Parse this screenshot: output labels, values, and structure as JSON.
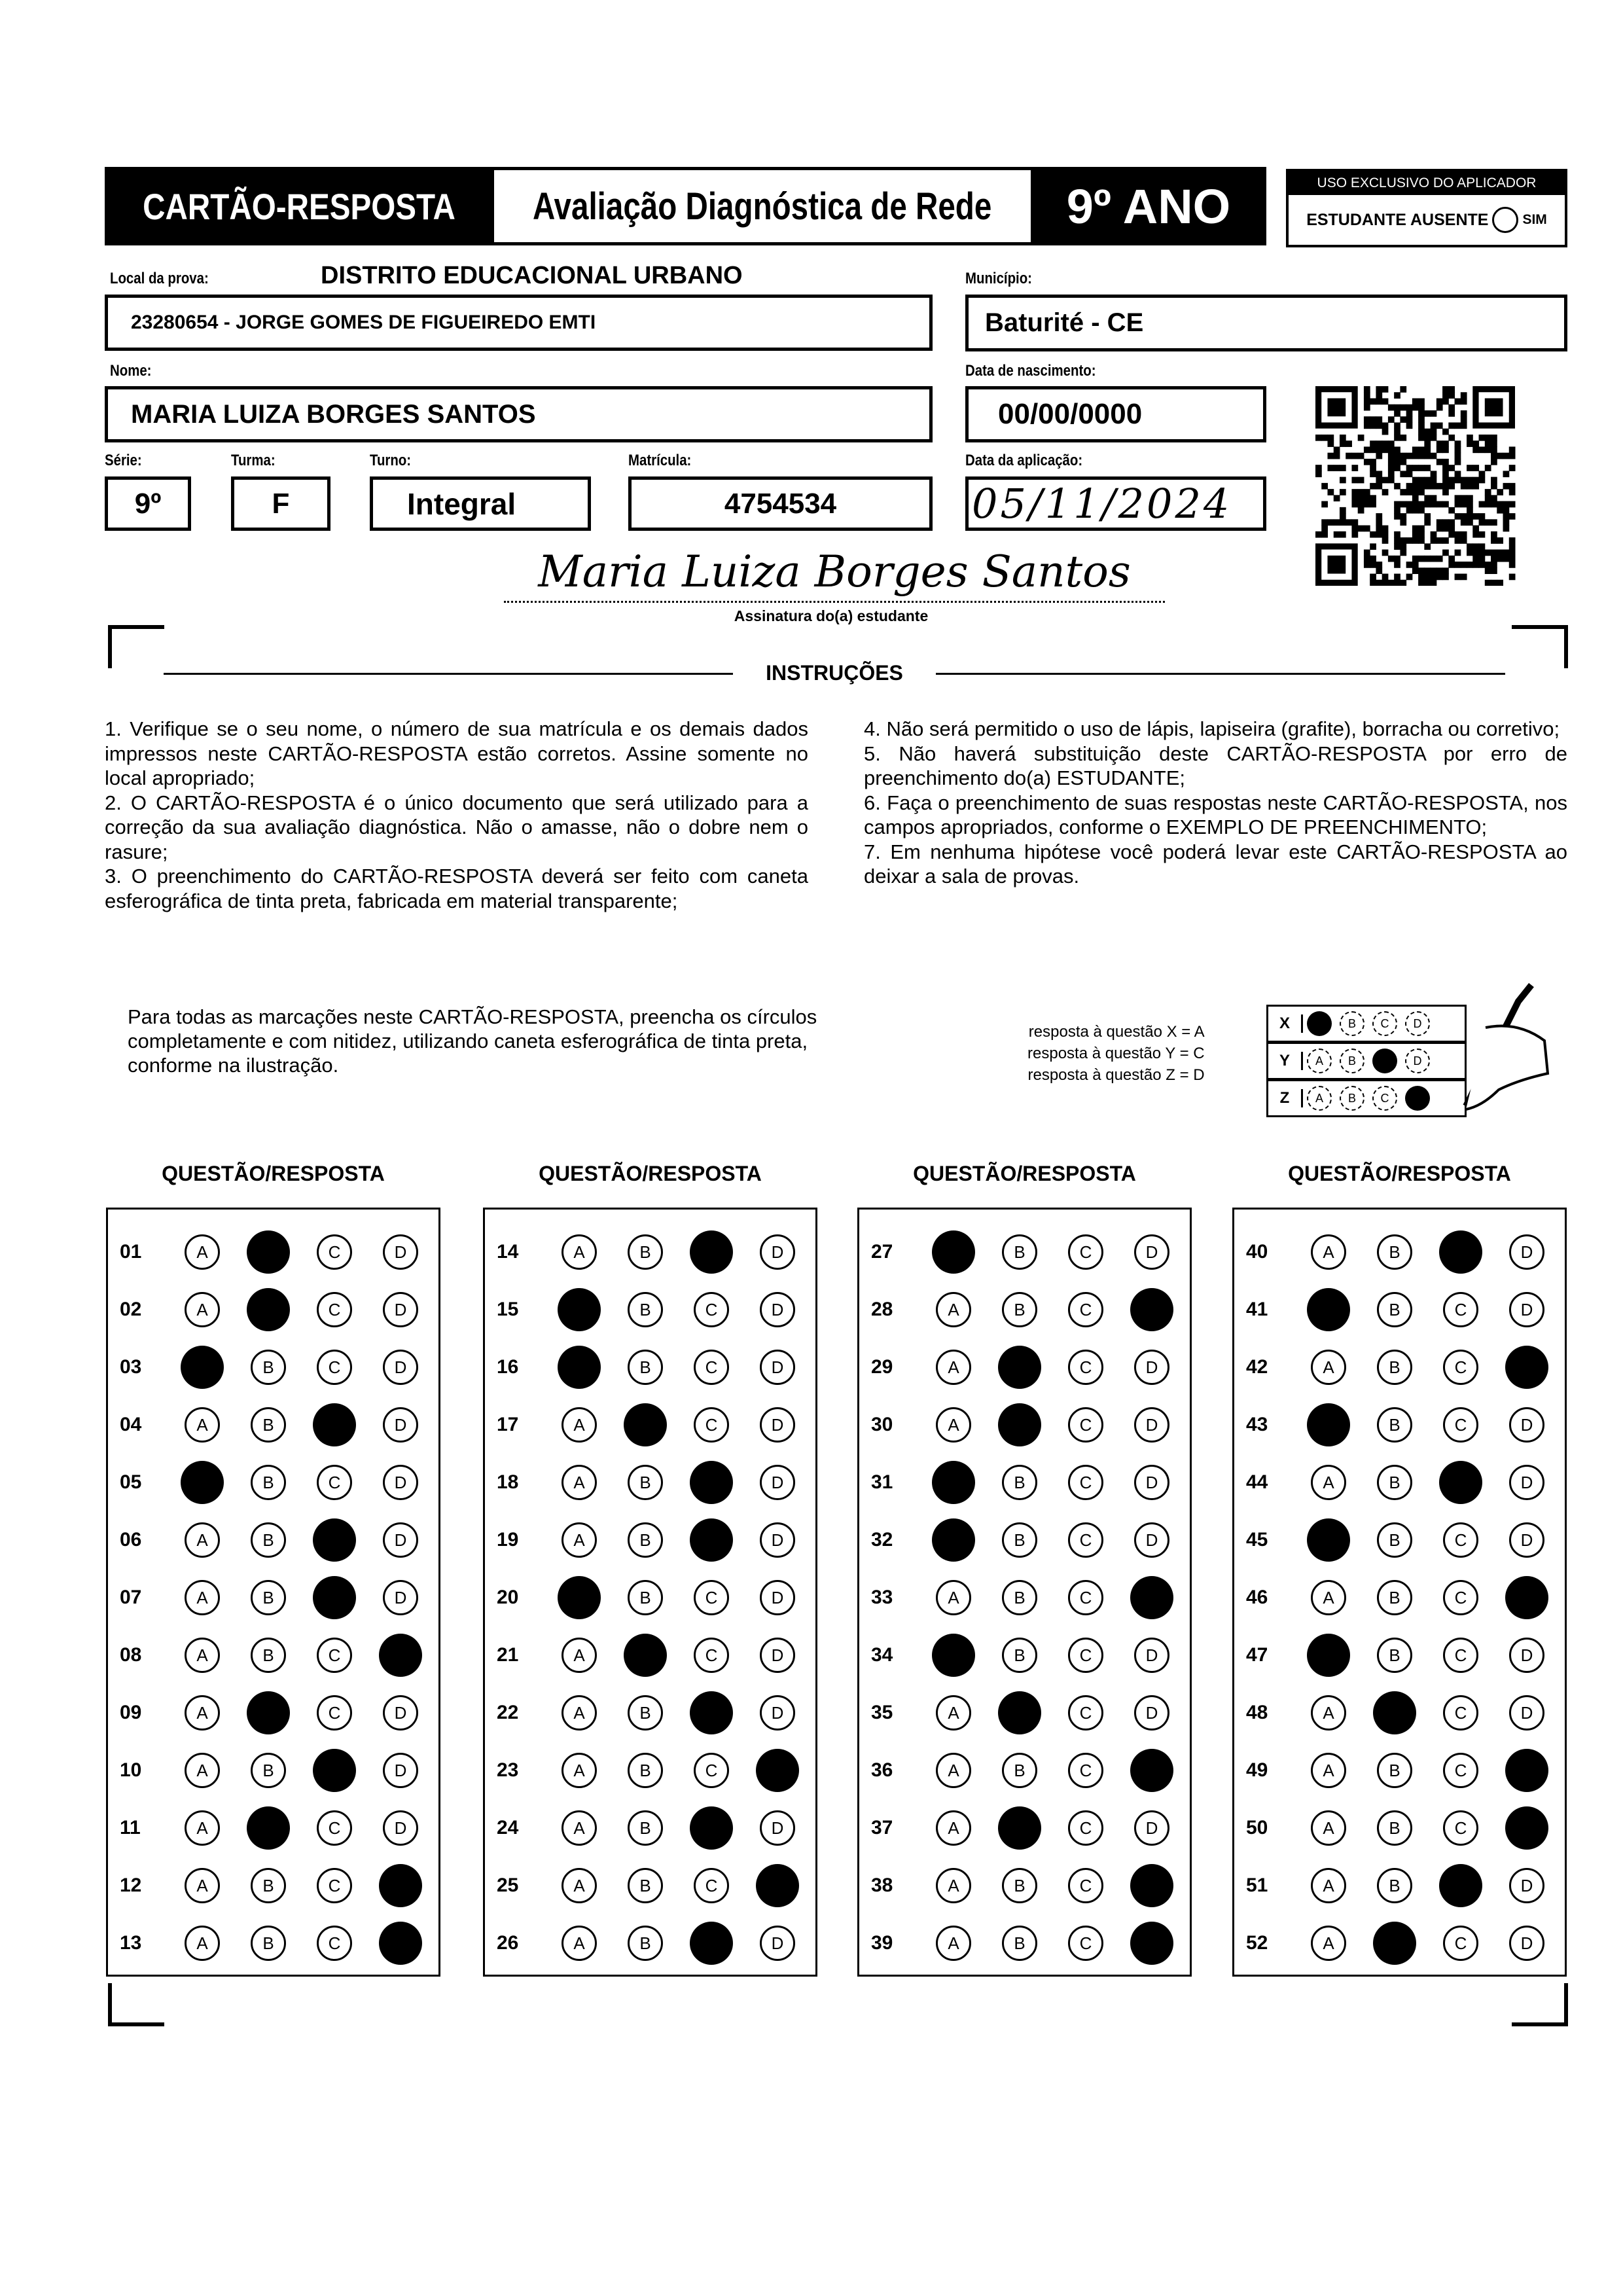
{
  "header": {
    "card_label": "CARTÃO-RESPOSTA",
    "exam_title": "Avaliação Diagnóstica de Rede",
    "grade": "9º ANO",
    "applicator_title": "USO EXCLUSIVO DO APLICADOR",
    "absent_label": "ESTUDANTE AUSENTE",
    "absent_option": "SIM"
  },
  "fields": {
    "local_label": "Local da prova:",
    "local_value": "DISTRITO EDUCACIONAL URBANO",
    "school": "23280654 - JORGE GOMES DE FIGUEIREDO EMTI",
    "municipio_label": "Município:",
    "municipio": "Baturité - CE",
    "nome_label": "Nome:",
    "nome": "MARIA LUIZA BORGES SANTOS",
    "nascimento_label": "Data de nascimento:",
    "nascimento": "00/00/0000",
    "serie_label": "Série:",
    "serie": "9º",
    "turma_label": "Turma:",
    "turma": "F",
    "turno_label": "Turno:",
    "turno": "Integral",
    "matricula_label": "Matrícula:",
    "matricula": "4754534",
    "aplicacao_label": "Data da aplicação:",
    "aplicacao": "05/11/2024",
    "signature": "Maria Luiza Borges Santos",
    "signature_label": "Assinatura do(a) estudante"
  },
  "instructions": {
    "title": "INSTRUÇÕES",
    "left": "1. Verifique se o seu nome, o número de sua matrícula e os demais dados impressos neste CARTÃO-RESPOSTA estão corretos. Assine somente no local apropriado;\n2. O CARTÃO-RESPOSTA é o único documento que será utilizado para a correção da sua avaliação diagnóstica. Não o amasse, não o dobre nem o rasure;\n3. O preenchimento do CARTÃO-RESPOSTA deverá ser feito com caneta esferográfica de tinta preta, fabricada em material transparente;",
    "right": "4. Não será permitido o uso de lápis, lapiseira (grafite), borracha ou corretivo;\n5. Não haverá substituição deste CARTÃO-RESPOSTA por erro de preenchimento do(a) ESTUDANTE;\n6. Faça o preenchimento de suas respostas neste CARTÃO-RESPOSTA, nos campos apropriados, conforme o EXEMPLO DE PREENCHIMENTO;\n7. Em nenhuma hipótese você poderá levar este CARTÃO-RESPOSTA ao deixar a sala de provas.",
    "fill_note": "Para todas as marcações neste CARTÃO-RESPOSTA, preencha os círculos completamente e com nitidez, utilizando caneta esferográfica de tinta preta, conforme na ilustração.",
    "example_lines": [
      "resposta à questão X = A",
      "resposta à questão Y = C",
      "resposta à questão Z = D"
    ],
    "example_rows": [
      {
        "q": "X",
        "mark": "A"
      },
      {
        "q": "Y",
        "mark": "C"
      },
      {
        "q": "Z",
        "mark": "D"
      }
    ]
  },
  "answers": {
    "column_header": "QUESTÃO/RESPOSTA",
    "options": [
      "A",
      "B",
      "C",
      "D"
    ],
    "columns": [
      [
        [
          "01",
          "B"
        ],
        [
          "02",
          "B"
        ],
        [
          "03",
          "A"
        ],
        [
          "04",
          "C"
        ],
        [
          "05",
          "A"
        ],
        [
          "06",
          "C"
        ],
        [
          "07",
          "C"
        ],
        [
          "08",
          "D"
        ],
        [
          "09",
          "B"
        ],
        [
          "10",
          "C"
        ],
        [
          "11",
          "B"
        ],
        [
          "12",
          "D"
        ],
        [
          "13",
          "D"
        ]
      ],
      [
        [
          "14",
          "C"
        ],
        [
          "15",
          "A"
        ],
        [
          "16",
          "A"
        ],
        [
          "17",
          "B"
        ],
        [
          "18",
          "C"
        ],
        [
          "19",
          "C"
        ],
        [
          "20",
          "A"
        ],
        [
          "21",
          "B"
        ],
        [
          "22",
          "C"
        ],
        [
          "23",
          "D"
        ],
        [
          "24",
          "C"
        ],
        [
          "25",
          "D"
        ],
        [
          "26",
          "C"
        ]
      ],
      [
        [
          "27",
          "A"
        ],
        [
          "28",
          "D"
        ],
        [
          "29",
          "B"
        ],
        [
          "30",
          "B"
        ],
        [
          "31",
          "A"
        ],
        [
          "32",
          "A"
        ],
        [
          "33",
          "D"
        ],
        [
          "34",
          "A"
        ],
        [
          "35",
          "B"
        ],
        [
          "36",
          "D"
        ],
        [
          "37",
          "B"
        ],
        [
          "38",
          "D"
        ],
        [
          "39",
          "D"
        ]
      ],
      [
        [
          "40",
          "C"
        ],
        [
          "41",
          "A"
        ],
        [
          "42",
          "D"
        ],
        [
          "43",
          "A"
        ],
        [
          "44",
          "C"
        ],
        [
          "45",
          "A"
        ],
        [
          "46",
          "D"
        ],
        [
          "47",
          "A"
        ],
        [
          "48",
          "B"
        ],
        [
          "49",
          "D"
        ],
        [
          "50",
          "D"
        ],
        [
          "51",
          "C"
        ],
        [
          "52",
          "B"
        ]
      ]
    ]
  }
}
